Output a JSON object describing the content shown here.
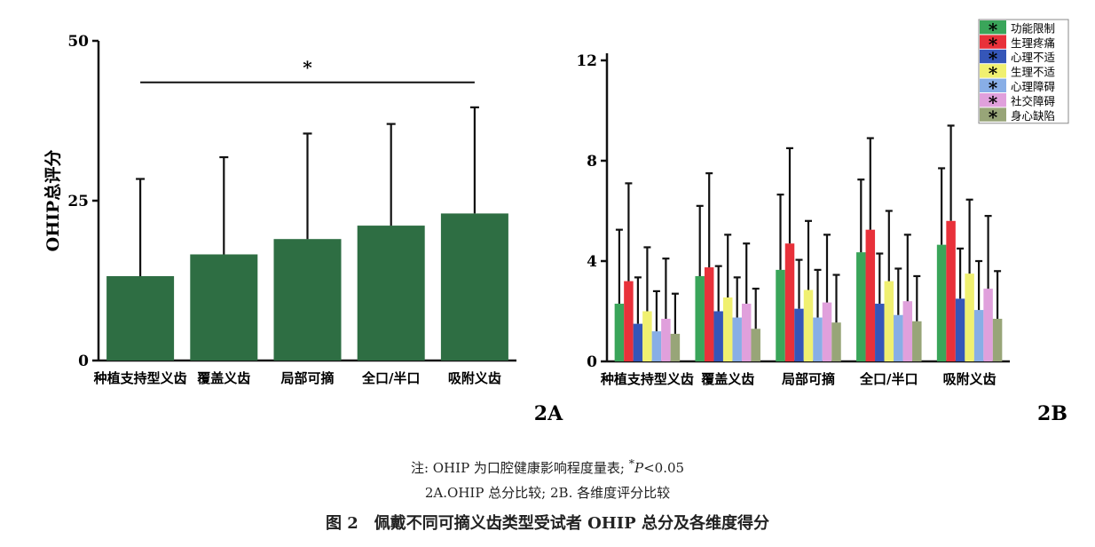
{
  "chart_data": [
    {
      "id": "2A",
      "type": "bar",
      "panel_label": "2A",
      "ylabel": "OHIP总评分",
      "xlabel": "",
      "ylim": [
        0,
        50
      ],
      "yticks": [
        0,
        25,
        50
      ],
      "categories": [
        "种植支持型义齿",
        "覆盖义齿",
        "局部可摘",
        "全口/半口",
        "吸附义齿"
      ],
      "values": [
        13.2,
        16.6,
        19.0,
        21.1,
        23.0
      ],
      "error_upper": [
        28.4,
        31.8,
        35.5,
        37.0,
        39.6
      ],
      "bar_color": "#2e6e43",
      "significance": {
        "label": "*",
        "from": "种植支持型义齿",
        "to": "吸附义齿",
        "y": 43.5
      },
      "grid": false
    },
    {
      "id": "2B",
      "type": "bar",
      "panel_label": "2B",
      "ylabel": "",
      "xlabel": "",
      "ylim": [
        0,
        12
      ],
      "yticks": [
        0,
        4,
        8,
        12
      ],
      "categories": [
        "种植支持型义齿",
        "覆盖义齿",
        "局部可摘",
        "全口/半口",
        "吸附义齿"
      ],
      "series": [
        {
          "name": "功能限制",
          "color": "#3aa55a",
          "values": [
            2.3,
            3.4,
            3.65,
            4.35,
            4.65
          ],
          "error_upper": [
            5.25,
            6.2,
            6.65,
            7.25,
            7.7
          ]
        },
        {
          "name": "生理疼痛",
          "color": "#e8313a",
          "values": [
            3.2,
            3.75,
            4.7,
            5.25,
            5.6
          ],
          "error_upper": [
            7.1,
            7.5,
            8.5,
            8.9,
            9.4
          ]
        },
        {
          "name": "心理不适",
          "color": "#3556b8",
          "values": [
            1.5,
            2.0,
            2.1,
            2.3,
            2.5
          ],
          "error_upper": [
            3.35,
            3.8,
            4.05,
            4.3,
            4.5
          ]
        },
        {
          "name": "生理不适",
          "color": "#f0f070",
          "values": [
            2.0,
            2.55,
            2.85,
            3.2,
            3.5
          ],
          "error_upper": [
            4.55,
            5.05,
            5.6,
            6.0,
            6.45
          ]
        },
        {
          "name": "心理障碍",
          "color": "#88aee6",
          "values": [
            1.2,
            1.75,
            1.75,
            1.85,
            2.05
          ],
          "error_upper": [
            2.8,
            3.35,
            3.65,
            3.7,
            4.0
          ]
        },
        {
          "name": "社交障碍",
          "color": "#e0a0dc",
          "values": [
            1.7,
            2.3,
            2.35,
            2.4,
            2.9
          ],
          "error_upper": [
            4.1,
            4.7,
            5.05,
            5.05,
            5.8
          ]
        },
        {
          "name": "身心缺陷",
          "color": "#98a578",
          "values": [
            1.1,
            1.3,
            1.55,
            1.6,
            1.7
          ],
          "error_upper": [
            2.7,
            2.9,
            3.45,
            3.4,
            3.6
          ]
        }
      ],
      "legend_placement": "top-right",
      "legend_marker": "*",
      "grid": false
    }
  ],
  "captions": {
    "note_prefix": "注: OHIP 为口腔健康影响程度量表; ",
    "note_star": "*",
    "note_p": "P",
    "note_suffix": "<0.05",
    "sub": "2A.OHIP 总分比较; 2B. 各维度评分比较",
    "title": "图 2　佩戴不同可摘义齿类型受试者 OHIP 总分及各维度得分"
  }
}
